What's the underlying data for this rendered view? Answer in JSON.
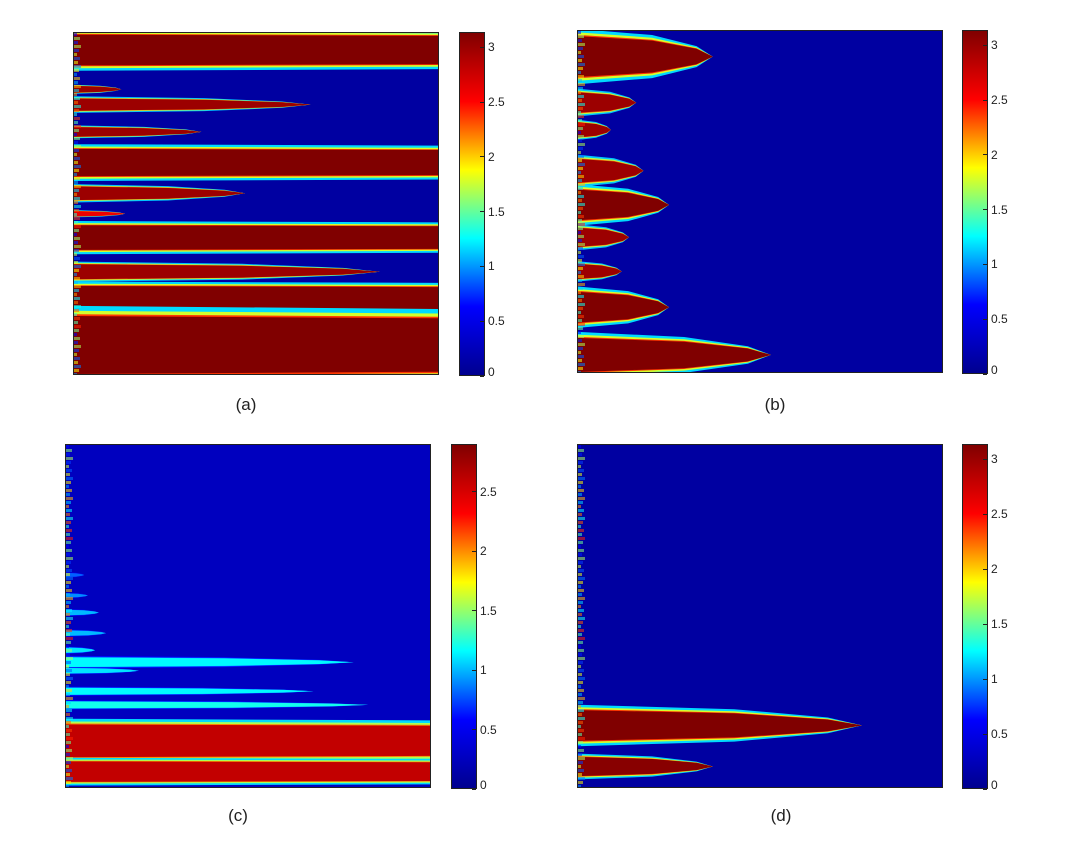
{
  "colormap": [
    "#00008f",
    "#0000ff",
    "#00ffff",
    "#ffff00",
    "#ff0000",
    "#800000"
  ],
  "chart_data": [
    {
      "type": "heatmap",
      "caption": "(a)",
      "colorbar": {
        "min": 0,
        "max": 3.14,
        "ticks": [
          0,
          0.5,
          1,
          1.5,
          2,
          2.5,
          3
        ],
        "tick_labels": [
          "0",
          "0.5",
          "1",
          "1.5",
          "2",
          "2.5",
          "3"
        ]
      },
      "background_value": 0.1,
      "bands": [
        {
          "y": 0.05,
          "half": 0.045,
          "extent": 1.0,
          "value": 3.14
        },
        {
          "y": 0.165,
          "half": 0.01,
          "extent": 0.13,
          "value": 3.0
        },
        {
          "y": 0.21,
          "half": 0.018,
          "extent": 0.65,
          "value": 3.0
        },
        {
          "y": 0.29,
          "half": 0.014,
          "extent": 0.35,
          "value": 3.0
        },
        {
          "y": 0.38,
          "half": 0.04,
          "extent": 1.0,
          "value": 3.14
        },
        {
          "y": 0.47,
          "half": 0.02,
          "extent": 0.47,
          "value": 3.0
        },
        {
          "y": 0.53,
          "half": 0.008,
          "extent": 0.14,
          "value": 2.6
        },
        {
          "y": 0.6,
          "half": 0.036,
          "extent": 1.0,
          "value": 3.14
        },
        {
          "y": 0.7,
          "half": 0.022,
          "extent": 0.84,
          "value": 3.0
        },
        {
          "y": 0.78,
          "half": 0.038,
          "extent": 1.0,
          "value": 3.14
        },
        {
          "y": 0.915,
          "half": 0.085,
          "extent": 1.0,
          "value": 3.14
        }
      ]
    },
    {
      "type": "heatmap",
      "caption": "(b)",
      "colorbar": {
        "min": 0,
        "max": 3.14,
        "ticks": [
          0,
          0.5,
          1,
          1.5,
          2,
          2.5,
          3
        ],
        "tick_labels": [
          "0",
          "0.5",
          "1",
          "1.5",
          "2",
          "2.5",
          "3"
        ]
      },
      "background_value": 0.1,
      "bands": [
        {
          "y": 0.075,
          "half": 0.06,
          "extent": 0.37,
          "value": 3.14
        },
        {
          "y": 0.21,
          "half": 0.03,
          "extent": 0.16,
          "value": 3.0
        },
        {
          "y": 0.29,
          "half": 0.022,
          "extent": 0.09,
          "value": 3.0
        },
        {
          "y": 0.41,
          "half": 0.035,
          "extent": 0.18,
          "value": 3.0
        },
        {
          "y": 0.51,
          "half": 0.045,
          "extent": 0.25,
          "value": 3.14
        },
        {
          "y": 0.605,
          "half": 0.028,
          "extent": 0.14,
          "value": 3.0
        },
        {
          "y": 0.705,
          "half": 0.022,
          "extent": 0.12,
          "value": 3.0
        },
        {
          "y": 0.81,
          "half": 0.045,
          "extent": 0.25,
          "value": 3.14
        },
        {
          "y": 0.95,
          "half": 0.05,
          "extent": 0.53,
          "value": 3.14
        }
      ]
    },
    {
      "type": "heatmap",
      "caption": "(c)",
      "colorbar": {
        "min": 0,
        "max": 2.9,
        "ticks": [
          0,
          0.5,
          1,
          1.5,
          2,
          2.5
        ],
        "tick_labels": [
          "0",
          "0.5",
          "1",
          "1.5",
          "2",
          "2.5"
        ]
      },
      "background_value": 0.25,
      "bands": [
        {
          "y": 0.38,
          "half": 0.006,
          "extent": 0.05,
          "value": 0.8
        },
        {
          "y": 0.44,
          "half": 0.006,
          "extent": 0.06,
          "value": 0.9
        },
        {
          "y": 0.49,
          "half": 0.008,
          "extent": 0.09,
          "value": 1.0
        },
        {
          "y": 0.55,
          "half": 0.008,
          "extent": 0.11,
          "value": 1.0
        },
        {
          "y": 0.6,
          "half": 0.008,
          "extent": 0.08,
          "value": 1.1
        },
        {
          "y": 0.635,
          "half": 0.014,
          "extent": 0.79,
          "value": 1.15
        },
        {
          "y": 0.66,
          "half": 0.008,
          "extent": 0.2,
          "value": 1.1
        },
        {
          "y": 0.72,
          "half": 0.01,
          "extent": 0.68,
          "value": 1.15
        },
        {
          "y": 0.76,
          "half": 0.01,
          "extent": 0.83,
          "value": 1.2
        },
        {
          "y": 0.865,
          "half": 0.048,
          "extent": 1.0,
          "value": 2.6
        },
        {
          "y": 0.955,
          "half": 0.03,
          "extent": 1.0,
          "value": 2.6
        }
      ]
    },
    {
      "type": "heatmap",
      "caption": "(d)",
      "colorbar": {
        "min": 0,
        "max": 3.14,
        "ticks": [
          0,
          0.5,
          1,
          1.5,
          2,
          2.5,
          3
        ],
        "tick_labels": [
          "0",
          "0.5",
          "1",
          "1.5",
          "2",
          "2.5",
          "3"
        ]
      },
      "background_value": 0.1,
      "bands": [
        {
          "y": 0.82,
          "half": 0.045,
          "extent": 0.78,
          "value": 3.14
        },
        {
          "y": 0.94,
          "half": 0.028,
          "extent": 0.37,
          "value": 3.1
        }
      ]
    }
  ]
}
